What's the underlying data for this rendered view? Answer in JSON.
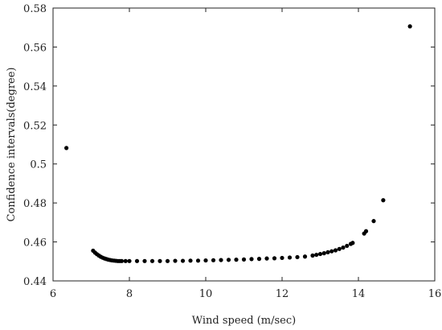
{
  "chart_data": {
    "type": "scatter",
    "title": "",
    "xlabel": "Wind speed (m/sec)",
    "ylabel": "Confidence intervals(degree)",
    "xlim": [
      6,
      16
    ],
    "ylim": [
      0.44,
      0.58
    ],
    "xticks": [
      6,
      8,
      10,
      12,
      14,
      16
    ],
    "yticks": [
      0.44,
      0.46,
      0.48,
      0.5,
      0.52,
      0.54,
      0.56,
      0.58
    ],
    "xtick_labels": [
      "6",
      "8",
      "10",
      "12",
      "14",
      "16"
    ],
    "ytick_labels": [
      "0.44",
      "0.46",
      "0.48",
      "0.5",
      "0.52",
      "0.54",
      "0.56",
      "0.58"
    ],
    "grid": false,
    "point_color": "#000000",
    "series": [
      {
        "points": [
          [
            6.35,
            0.5082
          ],
          [
            7.05,
            0.4555
          ],
          [
            7.1,
            0.4545
          ],
          [
            7.15,
            0.4537
          ],
          [
            7.2,
            0.453
          ],
          [
            7.25,
            0.4524
          ],
          [
            7.3,
            0.4519
          ],
          [
            7.35,
            0.4515
          ],
          [
            7.4,
            0.4512
          ],
          [
            7.45,
            0.4509
          ],
          [
            7.5,
            0.4507
          ],
          [
            7.55,
            0.4505
          ],
          [
            7.6,
            0.4504
          ],
          [
            7.65,
            0.4503
          ],
          [
            7.7,
            0.4502
          ],
          [
            7.75,
            0.4502
          ],
          [
            7.8,
            0.4502
          ],
          [
            7.9,
            0.4502
          ],
          [
            8.0,
            0.4502
          ],
          [
            8.2,
            0.4502
          ],
          [
            8.4,
            0.4502
          ],
          [
            8.6,
            0.4502
          ],
          [
            8.8,
            0.4502
          ],
          [
            9.0,
            0.4502
          ],
          [
            9.2,
            0.4503
          ],
          [
            9.4,
            0.4503
          ],
          [
            9.6,
            0.4504
          ],
          [
            9.8,
            0.4504
          ],
          [
            10.0,
            0.4505
          ],
          [
            10.2,
            0.4506
          ],
          [
            10.4,
            0.4507
          ],
          [
            10.6,
            0.4508
          ],
          [
            10.8,
            0.4509
          ],
          [
            11.0,
            0.451
          ],
          [
            11.2,
            0.4512
          ],
          [
            11.4,
            0.4513
          ],
          [
            11.6,
            0.4515
          ],
          [
            11.8,
            0.4516
          ],
          [
            12.0,
            0.4518
          ],
          [
            12.2,
            0.452
          ],
          [
            12.4,
            0.4522
          ],
          [
            12.6,
            0.4525
          ],
          [
            12.8,
            0.453
          ],
          [
            12.9,
            0.4534
          ],
          [
            13.0,
            0.4538
          ],
          [
            13.1,
            0.4542
          ],
          [
            13.2,
            0.4547
          ],
          [
            13.3,
            0.4552
          ],
          [
            13.4,
            0.4557
          ],
          [
            13.5,
            0.4564
          ],
          [
            13.6,
            0.4571
          ],
          [
            13.7,
            0.458
          ],
          [
            13.8,
            0.459
          ],
          [
            13.85,
            0.4595
          ],
          [
            14.15,
            0.4643
          ],
          [
            14.2,
            0.4655
          ],
          [
            14.4,
            0.4707
          ],
          [
            14.65,
            0.4814
          ],
          [
            15.35,
            0.5706
          ]
        ]
      }
    ]
  }
}
